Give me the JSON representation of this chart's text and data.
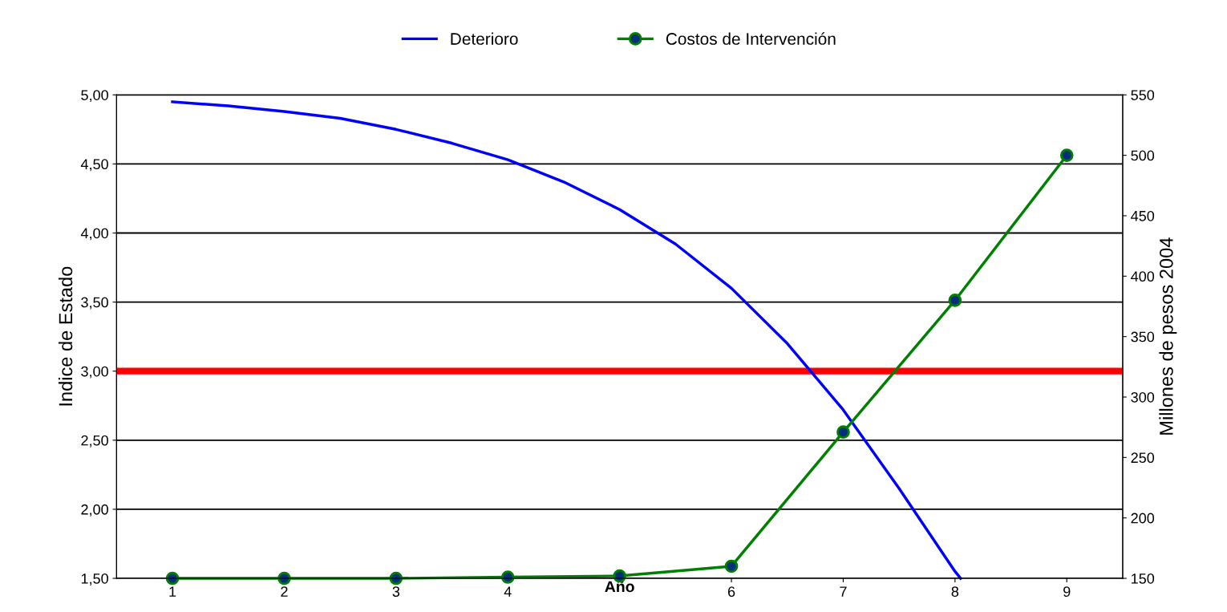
{
  "chart_data": {
    "type": "line",
    "xlabel": "Año",
    "ylabel": "Indice de Estado",
    "y2label": "Millones de pesos 2004",
    "xlim": [
      0.5,
      9.5
    ],
    "xticks": [
      1,
      2,
      3,
      4,
      6,
      7,
      8,
      9
    ],
    "ylim": [
      1.5,
      5.0
    ],
    "yticks": [
      {
        "value": 1.5,
        "label": "1,50"
      },
      {
        "value": 2.0,
        "label": "2,00"
      },
      {
        "value": 2.5,
        "label": "2,50"
      },
      {
        "value": 3.0,
        "label": "3,00"
      },
      {
        "value": 3.5,
        "label": "3,50"
      },
      {
        "value": 4.0,
        "label": "4,00"
      },
      {
        "value": 4.5,
        "label": "4,50"
      },
      {
        "value": 5.0,
        "label": "5,00"
      }
    ],
    "y2lim": [
      150,
      550
    ],
    "y2ticks": [
      150,
      200,
      250,
      300,
      350,
      400,
      450,
      500,
      550
    ],
    "grid": "y",
    "legend": "top",
    "series": [
      {
        "name": "Deterioro",
        "color": "#0000ff",
        "marker": "none",
        "x": [
          1,
          1.5,
          2,
          2.5,
          3,
          3.5,
          4,
          4.5,
          5,
          5.5,
          6,
          6.5,
          7,
          7.5,
          8,
          8.05
        ],
        "values": [
          4.95,
          4.92,
          4.88,
          4.83,
          4.75,
          4.65,
          4.53,
          4.37,
          4.17,
          3.92,
          3.6,
          3.2,
          2.72,
          2.15,
          1.55,
          1.5
        ]
      },
      {
        "name": "Costos de Intervención",
        "color": "#008000",
        "axis": "y2",
        "marker": "circle",
        "x": [
          1,
          2,
          3,
          4,
          5,
          6,
          7,
          8,
          9
        ],
        "values": [
          150,
          150,
          150,
          151,
          152,
          160,
          271,
          380,
          500
        ]
      }
    ],
    "ref_lines": [
      {
        "axis": "y",
        "value": 3.0,
        "color": "#ff0000"
      }
    ]
  }
}
